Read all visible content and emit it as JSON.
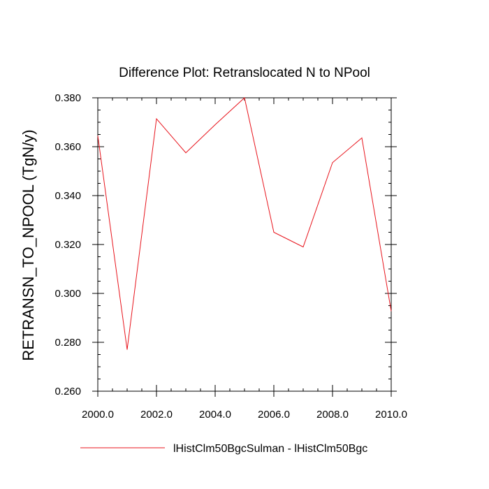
{
  "chart_data": {
    "type": "line",
    "title": "Difference Plot: Retranslocated N to NPool",
    "ylabel": "RETRANSN_TO_NPOOL  (TgN/y)",
    "xlabel": "",
    "xlim": [
      2000.0,
      2010.0
    ],
    "ylim": [
      0.26,
      0.38
    ],
    "x_ticks": [
      "2000.0",
      "2002.0",
      "2004.0",
      "2006.0",
      "2008.0",
      "2010.0"
    ],
    "y_ticks": [
      "0.260",
      "0.280",
      "0.300",
      "0.320",
      "0.340",
      "0.360",
      "0.380"
    ],
    "grid": false,
    "legend_position": "bottom",
    "series": [
      {
        "name": "lHistClm50BgcSulman - lHistClm50Bgc",
        "color": "#e8141c",
        "x": [
          2000,
          2001,
          2002,
          2003,
          2004,
          2005,
          2006,
          2007,
          2008,
          2009,
          2010
        ],
        "values": [
          0.3645,
          0.277,
          0.3714,
          0.3575,
          0.369,
          0.38,
          0.325,
          0.319,
          0.3535,
          0.3636,
          0.2927
        ]
      }
    ]
  }
}
